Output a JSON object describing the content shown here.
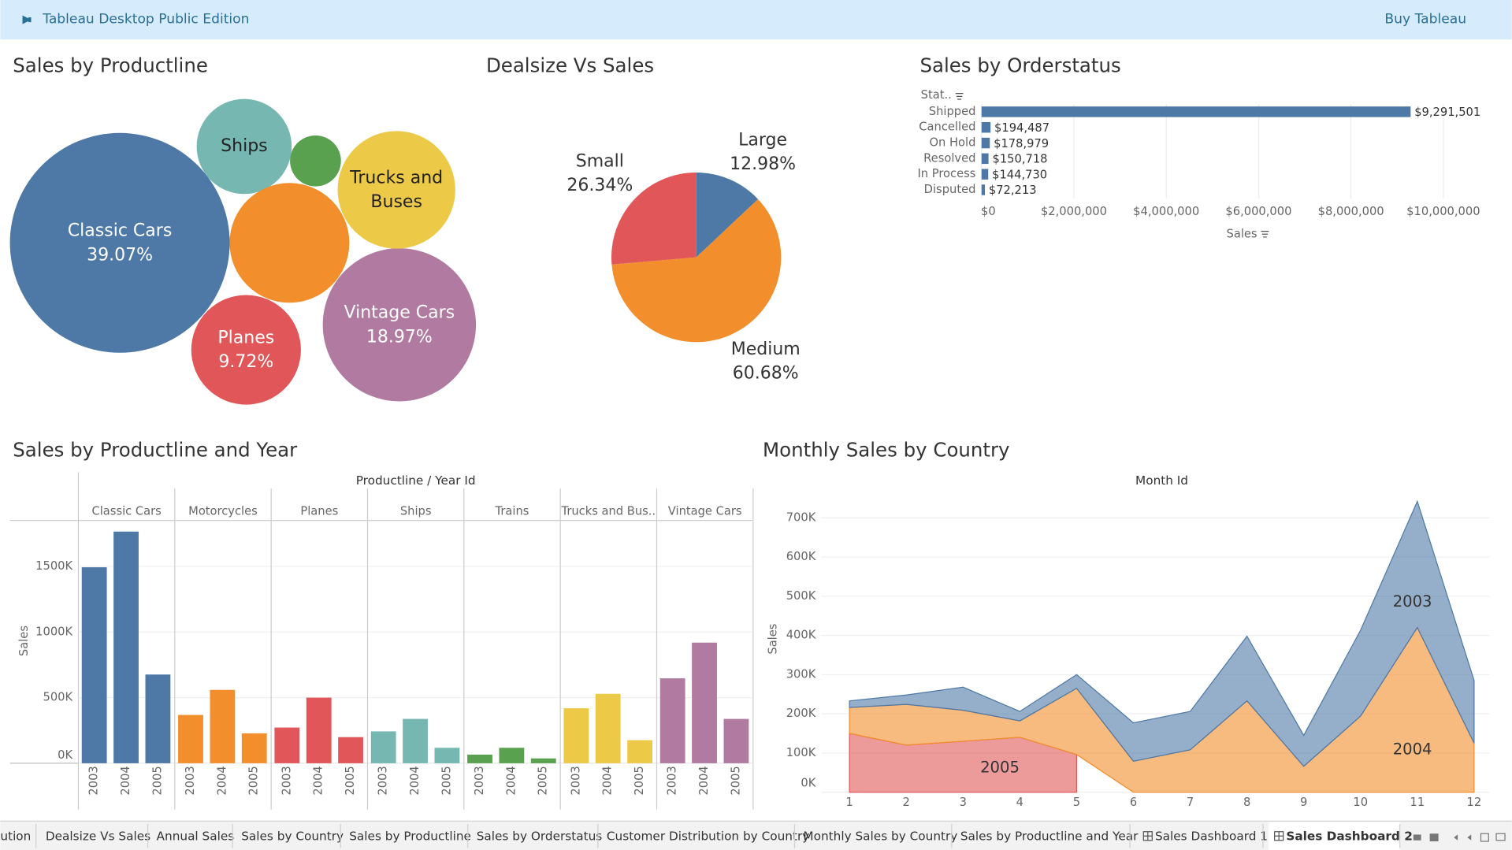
{
  "header": {
    "title": "Tableau Desktop Public Edition",
    "action": "Buy Tableau"
  },
  "chart_data": [
    {
      "type": "bubble",
      "title": "Sales by Productline",
      "categories": [
        "Classic Cars",
        "Vintage Cars",
        "Planes",
        "Ships",
        "Trucks and Buses",
        null,
        null
      ],
      "values": [
        39.07,
        18.97,
        9.72,
        7.3,
        11.2,
        2.1,
        11.6
      ],
      "value_labels": [
        "39.07%",
        "18.97%",
        "9.72%",
        null,
        null,
        null,
        null
      ],
      "colors": [
        "#4e79a7",
        "#b07aa1",
        "#e15759",
        "#76b7b2",
        "#edc948",
        "#59a14f",
        "#f28e2b"
      ]
    },
    {
      "type": "pie",
      "title": "Dealsize Vs Sales",
      "categories": [
        "Large",
        "Medium",
        "Small"
      ],
      "values": [
        12.98,
        60.68,
        26.34
      ],
      "value_labels": [
        "12.98%",
        "60.68%",
        "26.34%"
      ],
      "colors": [
        "#4e79a7",
        "#f28e2b",
        "#e15759"
      ]
    },
    {
      "type": "bar",
      "orientation": "horizontal",
      "title": "Sales by Orderstatus",
      "y_label": "Stat..",
      "x_label": "Sales",
      "categories": [
        "Shipped",
        "Cancelled",
        "On Hold",
        "Resolved",
        "In Process",
        "Disputed"
      ],
      "values": [
        9291501,
        194487,
        178979,
        150718,
        144730,
        72213
      ],
      "value_labels": [
        "$9,291,501",
        "$194,487",
        "$178,979",
        "$150,718",
        "$144,730",
        "$72,213"
      ],
      "color": "#4e79a7",
      "grid": true,
      "xlim": [
        0,
        11000000
      ],
      "xticks": [
        {
          "value": 0,
          "label": "$0"
        },
        {
          "value": 2000000,
          "label": "$2,000,000"
        },
        {
          "value": 4000000,
          "label": "$4,000,000"
        },
        {
          "value": 6000000,
          "label": "$6,000,000"
        },
        {
          "value": 8000000,
          "label": "$8,000,000"
        },
        {
          "value": 10000000,
          "label": "$10,000,000"
        }
      ]
    },
    {
      "type": "grouped-bar",
      "title": "Sales by Productline and Year",
      "header": "Productline / Year Id",
      "y_label": "Sales",
      "categories": [
        "2003",
        "2004",
        "2005"
      ],
      "series": [
        {
          "name": "Classic Cars",
          "color": "#4e79a7",
          "values": [
            1493000,
            1765000,
            676000
          ]
        },
        {
          "name": "Motorcycles",
          "color": "#f28e2b",
          "values": [
            368000,
            559000,
            228000
          ]
        },
        {
          "name": "Planes",
          "color": "#e15759",
          "values": [
            272000,
            500000,
            199000
          ]
        },
        {
          "name": "Ships",
          "color": "#76b7b2",
          "values": [
            243000,
            338000,
            118000
          ]
        },
        {
          "name": "Trains",
          "color": "#59a14f",
          "values": [
            66000,
            118000,
            37000
          ]
        },
        {
          "name": "Trucks and Bus..",
          "color": "#edc948",
          "values": [
            419000,
            529000,
            176000
          ]
        },
        {
          "name": "Vintage Cars",
          "color": "#b07aa1",
          "values": [
            647000,
            919000,
            338000
          ]
        }
      ],
      "ylim": [
        0,
        1850000
      ],
      "grid": true,
      "yticks": [
        {
          "value": 0,
          "label": "0K"
        },
        {
          "value": 500000,
          "label": "500K"
        },
        {
          "value": 1000000,
          "label": "1000K"
        },
        {
          "value": 1500000,
          "label": "1500K"
        }
      ]
    },
    {
      "type": "area",
      "stacked": true,
      "title": "Monthly Sales by Country",
      "header": "Month Id",
      "y_label": "Sales",
      "x": [
        1,
        2,
        3,
        4,
        5,
        6,
        7,
        8,
        9,
        10,
        11,
        12
      ],
      "series": [
        {
          "name": "2003",
          "color": "#4e79a7",
          "values": [
            17000,
            24000,
            59000,
            24000,
            35000,
            98000,
            98000,
            165000,
            79000,
            219000,
            322000,
            160000
          ]
        },
        {
          "name": "2004",
          "color": "#f28e2b",
          "values": [
            66000,
            104000,
            79000,
            42000,
            169000,
            79000,
            108000,
            233000,
            66000,
            194000,
            420000,
            125000
          ]
        },
        {
          "name": "2005",
          "color": "#e15759",
          "values": [
            150000,
            120000,
            130000,
            140000,
            96000,
            null,
            null,
            null,
            null,
            null,
            null,
            null
          ]
        }
      ],
      "xlim": [
        1,
        12
      ],
      "xticks": [
        1,
        2,
        3,
        4,
        5,
        6,
        7,
        8,
        9,
        10,
        11,
        12
      ],
      "ylim": [
        0,
        750000
      ],
      "grid": true,
      "yticks": [
        {
          "value": 0,
          "label": "0K"
        },
        {
          "value": 100000,
          "label": "100K"
        },
        {
          "value": 200000,
          "label": "200K"
        },
        {
          "value": 300000,
          "label": "300K"
        },
        {
          "value": 400000,
          "label": "400K"
        },
        {
          "value": 500000,
          "label": "500K"
        },
        {
          "value": 600000,
          "label": "600K"
        },
        {
          "value": 700000,
          "label": "700K"
        }
      ]
    }
  ],
  "tabs": [
    "ution",
    "Dealsize Vs Sales",
    "Annual Sales",
    "Sales by Country",
    "Sales by Productline",
    "Sales by Orderstatus",
    "Customer Distribution by Country",
    "Monthly Sales by Country",
    "Sales by Productline and Year",
    "Sales Dashboard 1",
    "Sales Dashboard 2"
  ]
}
